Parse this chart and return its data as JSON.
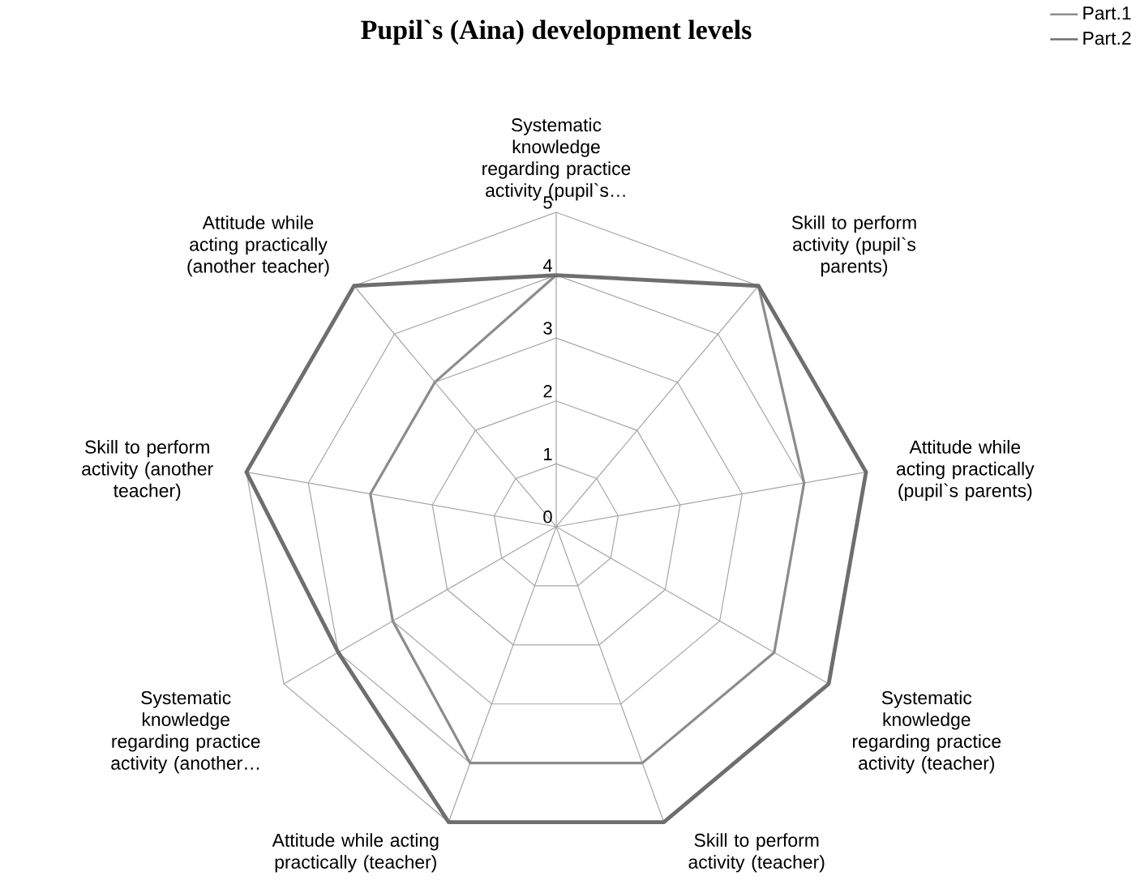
{
  "chart_data": {
    "type": "radar",
    "title": "Pupil`s (Aina) development levels",
    "categories": [
      "Systematic knowledge regarding practice activity (pupil`s…",
      "Skill to perform activity (pupil`s parents)",
      "Attitude while acting practically (pupil`s parents)",
      "Systematic knowledge regarding practice activity (teacher)",
      "Skill to perform activity (teacher)",
      "Attitude while acting practically (teacher)",
      "Systematic knowledge regarding practice activity (another…",
      "Skill to perform activity (another teacher)",
      "Attitude while acting practically (another teacher)"
    ],
    "series": [
      {
        "name": "Part.1",
        "color": "#8c8c8c",
        "values": [
          4,
          5,
          4,
          4,
          4,
          4,
          3,
          3,
          3
        ]
      },
      {
        "name": "Part.2",
        "color": "#6e6e6e",
        "values": [
          4,
          5,
          5,
          5,
          5,
          5,
          4,
          5,
          5
        ]
      }
    ],
    "ylim": [
      0,
      5
    ],
    "yticks": [
      0,
      1,
      2,
      3,
      4,
      5
    ],
    "grid": true,
    "legend": "top right"
  }
}
